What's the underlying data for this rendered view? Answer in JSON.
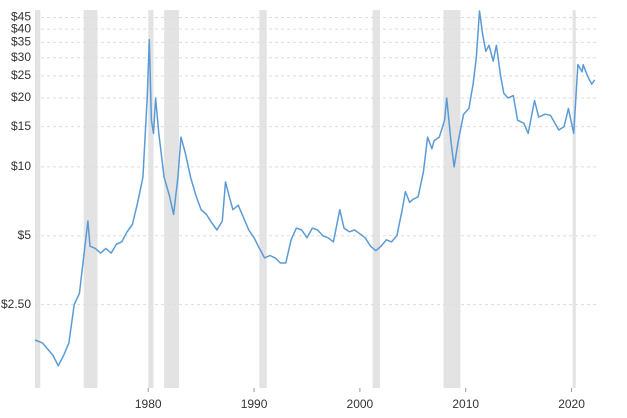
{
  "chart_data": {
    "type": "line",
    "log_scale": true,
    "grid": true,
    "color": "#5b9bd5",
    "band_color": "#e3e3e3",
    "xlim": [
      1969.3,
      2022.5
    ],
    "xticks": [
      1980,
      1990,
      2000,
      2010,
      2020
    ],
    "ylim": [
      1.08,
      48.5
    ],
    "yticks": [
      {
        "value": 2.5,
        "label": "$2.50"
      },
      {
        "value": 5,
        "label": "$5"
      },
      {
        "value": 10,
        "label": "$10"
      },
      {
        "value": 15,
        "label": "$15"
      },
      {
        "value": 20,
        "label": "$20"
      },
      {
        "value": 25,
        "label": "$25"
      },
      {
        "value": 30,
        "label": "$30"
      },
      {
        "value": 35,
        "label": "$35"
      },
      {
        "value": 40,
        "label": "$40"
      },
      {
        "value": 45,
        "label": "$45"
      }
    ],
    "recessions": [
      [
        1969.3,
        1969.8
      ],
      [
        1973.9,
        1975.2
      ],
      [
        1980.0,
        1980.5
      ],
      [
        1981.5,
        1982.9
      ],
      [
        1990.5,
        1991.2
      ],
      [
        2001.2,
        2001.9
      ],
      [
        2007.9,
        2009.5
      ],
      [
        2020.1,
        2020.4
      ]
    ],
    "x": [
      1969.3,
      1970,
      1971,
      1971.5,
      1972,
      1972.5,
      1973,
      1973.5,
      1974.3,
      1974.5,
      1975,
      1975.5,
      1976,
      1976.5,
      1977,
      1977.5,
      1978,
      1978.5,
      1979,
      1979.5,
      1979.9,
      1980.1,
      1980.3,
      1980.5,
      1980.7,
      1981,
      1981.5,
      1982,
      1982.4,
      1982.8,
      1983.1,
      1983.5,
      1984,
      1984.5,
      1985,
      1985.5,
      1986,
      1986.5,
      1987,
      1987.3,
      1987.7,
      1988,
      1988.5,
      1989,
      1989.5,
      1990,
      1990.5,
      1991,
      1991.5,
      1992,
      1992.5,
      1993,
      1993.5,
      1994,
      1994.5,
      1995,
      1995.5,
      1996,
      1996.5,
      1997,
      1997.5,
      1998.1,
      1998.5,
      1999,
      1999.5,
      2000,
      2000.5,
      2001,
      2001.5,
      2002,
      2002.5,
      2003,
      2003.5,
      2004,
      2004.3,
      2004.7,
      2005,
      2005.5,
      2006,
      2006.4,
      2006.8,
      2007,
      2007.5,
      2008,
      2008.2,
      2008.6,
      2008.9,
      2009.3,
      2009.8,
      2010.3,
      2010.7,
      2011.0,
      2011.3,
      2011.6,
      2011.9,
      2012.2,
      2012.6,
      2012.9,
      2013.3,
      2013.6,
      2014,
      2014.5,
      2014.9,
      2015.5,
      2015.9,
      2016.5,
      2016.9,
      2017.5,
      2018,
      2018.8,
      2019.3,
      2019.7,
      2020.2,
      2020.6,
      2021,
      2021.1,
      2021.5,
      2021.9,
      2022.2
    ],
    "values": [
      1.75,
      1.7,
      1.5,
      1.35,
      1.5,
      1.7,
      2.5,
      2.8,
      5.8,
      4.5,
      4.4,
      4.2,
      4.4,
      4.2,
      4.6,
      4.7,
      5.2,
      5.6,
      7,
      9,
      20,
      36,
      16,
      14,
      20,
      14,
      9,
      7.5,
      6.2,
      9,
      13.5,
      11.5,
      9,
      7.5,
      6.5,
      6.2,
      5.7,
      5.3,
      5.8,
      8.6,
      7.3,
      6.5,
      6.8,
      6,
      5.3,
      4.9,
      4.4,
      4.0,
      4.1,
      4.0,
      3.8,
      3.8,
      4.8,
      5.4,
      5.3,
      4.9,
      5.4,
      5.3,
      5.0,
      4.9,
      4.7,
      6.5,
      5.4,
      5.2,
      5.3,
      5.1,
      4.9,
      4.5,
      4.3,
      4.5,
      4.8,
      4.7,
      5.0,
      6.5,
      7.8,
      7.0,
      7.2,
      7.4,
      9.5,
      13.5,
      12,
      13,
      13.5,
      16,
      20,
      13,
      10,
      13,
      17,
      18,
      23,
      30,
      48,
      38,
      32,
      34,
      29,
      34,
      25,
      21,
      20,
      20.5,
      16,
      15.5,
      14,
      19.5,
      16.5,
      17,
      16.8,
      14.5,
      15,
      18,
      14,
      28,
      26,
      28,
      25,
      23,
      24
    ]
  }
}
